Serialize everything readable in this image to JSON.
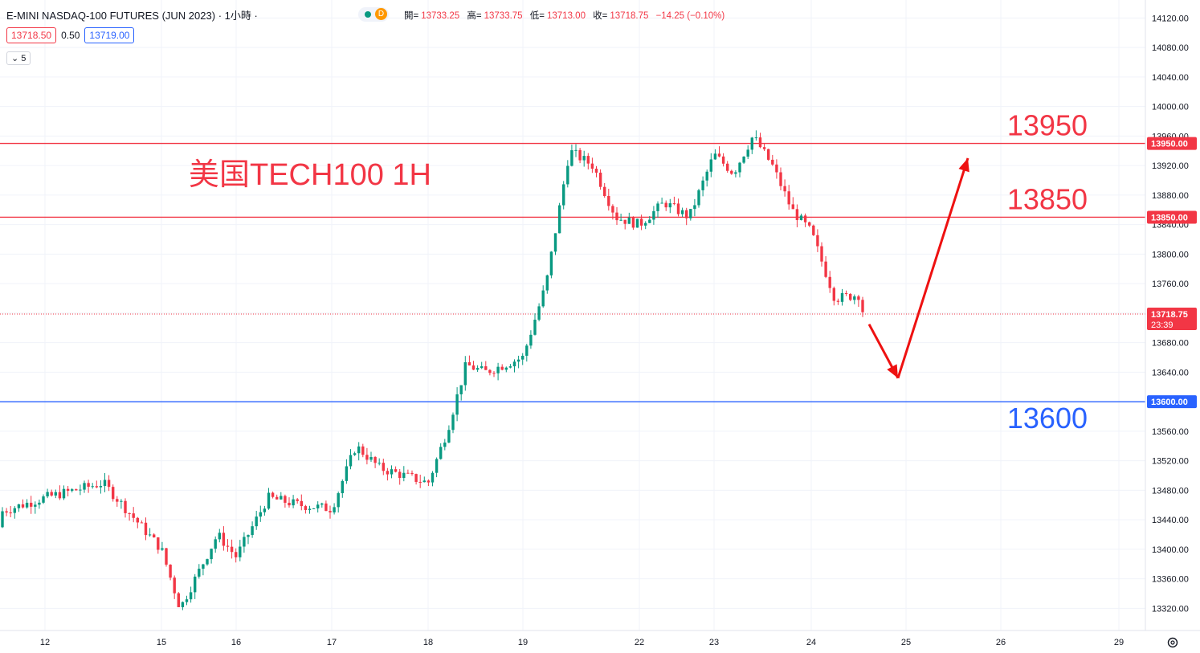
{
  "header": {
    "symbol": "E-MINI NASDAQ-100 FUTURES (JUN 2023)",
    "interval": "1小時",
    "sep": "·",
    "source_badge": "D",
    "ohlc": [
      {
        "k": "開=",
        "v": "13733.25"
      },
      {
        "k": "高=",
        "v": "13733.75"
      },
      {
        "k": "低=",
        "v": "13713.00"
      },
      {
        "k": "收=",
        "v": "13718.75"
      },
      {
        "k": "",
        "v": "−14.25 (−0.10%)"
      }
    ],
    "bid": "13718.50",
    "spread": "0.50",
    "ask": "13719.00",
    "indicator_count": "5"
  },
  "colors": {
    "up": "#089981",
    "down": "#f23645",
    "resistance": "#f23645",
    "support": "#2962ff",
    "arrow": "#ee1111",
    "grid": "#f0f3fa"
  },
  "chart_data": {
    "type": "candlestick",
    "ylim": [
      13290,
      14140
    ],
    "y_ticks": [
      "14120.00",
      "14080.00",
      "14040.00",
      "14000.00",
      "13960.00",
      "13920.00",
      "13880.00",
      "13840.00",
      "13800.00",
      "13760.00",
      "13720.00",
      "13680.00",
      "13640.00",
      "13600.00",
      "13560.00",
      "13520.00",
      "13480.00",
      "13440.00",
      "13400.00",
      "13360.00",
      "13320.00"
    ],
    "x_ticks": [
      "12",
      "15",
      "16",
      "17",
      "18",
      "19",
      "22",
      "23",
      "24",
      "25",
      "26",
      "29"
    ],
    "last_price": "13718.75",
    "countdown": "23:39",
    "annotation_title": "美国TECH100 1H",
    "levels": [
      {
        "label": "13950",
        "tag": "13950.00",
        "value": 13950,
        "color": "#f23645"
      },
      {
        "label": "13850",
        "tag": "13850.00",
        "value": 13850,
        "color": "#f23645"
      },
      {
        "label": "13600",
        "tag": "13600.00",
        "value": 13600,
        "color": "#2962ff"
      }
    ],
    "forecast_path": [
      {
        "date": "24",
        "price": 13705
      },
      {
        "date": "25",
        "price": 13632
      },
      {
        "date": "26",
        "price": 13930
      }
    ],
    "anchors": [
      {
        "date": "11",
        "price": 13430
      },
      {
        "date": "12",
        "price": 13470
      },
      {
        "date": "12",
        "price": 13490
      },
      {
        "date": "15",
        "price": 13400
      },
      {
        "date": "15",
        "price": 13320
      },
      {
        "date": "15",
        "price": 13370
      },
      {
        "date": "15",
        "price": 13420
      },
      {
        "date": "16",
        "price": 13390
      },
      {
        "date": "16",
        "price": 13470
      },
      {
        "date": "16",
        "price": 13460
      },
      {
        "date": "17",
        "price": 13455
      },
      {
        "date": "17",
        "price": 13540
      },
      {
        "date": "17",
        "price": 13510
      },
      {
        "date": "17",
        "price": 13500
      },
      {
        "date": "18",
        "price": 13490
      },
      {
        "date": "18",
        "price": 13560
      },
      {
        "date": "18",
        "price": 13650
      },
      {
        "date": "18",
        "price": 13640
      },
      {
        "date": "18",
        "price": 13650
      },
      {
        "date": "19",
        "price": 13660
      },
      {
        "date": "19",
        "price": 13760
      },
      {
        "date": "19",
        "price": 13940
      },
      {
        "date": "19",
        "price": 13920
      },
      {
        "date": "19",
        "price": 13850
      },
      {
        "date": "22",
        "price": 13840
      },
      {
        "date": "22",
        "price": 13870
      },
      {
        "date": "22",
        "price": 13850
      },
      {
        "date": "23",
        "price": 13935
      },
      {
        "date": "23",
        "price": 13910
      },
      {
        "date": "23",
        "price": 13960
      },
      {
        "date": "23",
        "price": 13920
      },
      {
        "date": "23",
        "price": 13860
      },
      {
        "date": "24",
        "price": 13830
      },
      {
        "date": "24",
        "price": 13740
      },
      {
        "date": "24",
        "price": 13745
      },
      {
        "date": "24",
        "price": 13719
      }
    ]
  }
}
